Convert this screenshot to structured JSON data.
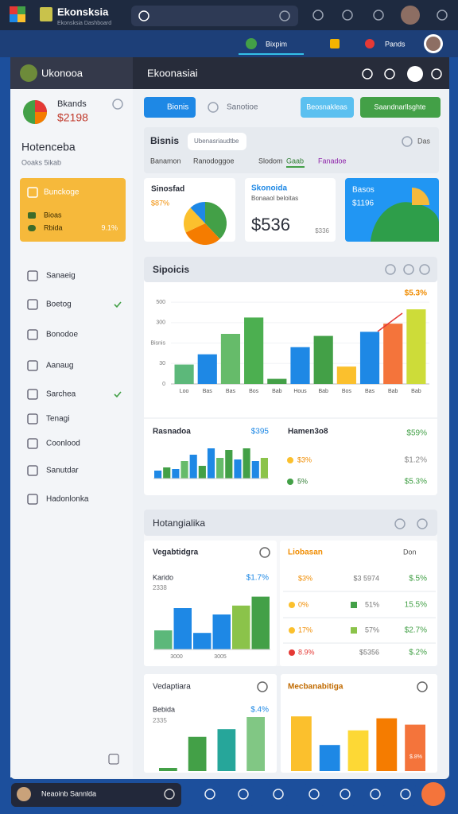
{
  "browser": {
    "title": "Ekonsksia",
    "subtitle": "Ekonsksia Dashboard",
    "tabs": [
      "Bixpim",
      "Pands"
    ]
  },
  "sidebar": {
    "app_name": "Ukonooa",
    "profile_name": "Bkands",
    "profile_value": "$2198",
    "section_title": "Hotenceba",
    "section_subtitle": "Ooaks 5ikab",
    "card": {
      "title": "Bunckoge",
      "rows": [
        {
          "label": "Bioas"
        },
        {
          "label": "Rbida",
          "value": "9.1%"
        }
      ]
    },
    "nav": [
      "Sanaeig",
      "Boetog",
      "Bonodoe",
      "Aanaug",
      "Sarchea",
      "Tenagi",
      "Coonlood",
      "Sanutdar",
      "Hadonlonka"
    ]
  },
  "header": {
    "title": "Ekoonasiai"
  },
  "toolbar": {
    "tab": "Bionis",
    "link": "Sanotioe",
    "buttons": [
      "Beosnakleas",
      "Saandnarllsghte"
    ]
  },
  "filter": {
    "title": "Bisnis",
    "search": "Ubenasriaudtbe",
    "tabs": [
      "Banamon",
      "Ranodoggoe",
      "Slodom",
      "Gaab",
      "Fanadoe"
    ],
    "action": "Das"
  },
  "kpis": [
    {
      "title": "Sinosfad",
      "value": "$87%",
      "pie": {
        "values": [
          38,
          30,
          20,
          12
        ],
        "colors": [
          "#43a047",
          "#f57c00",
          "#fbc02d",
          "#1e88e5"
        ]
      }
    },
    {
      "title": "Skonoida",
      "subtitle": "Bonaaol beloitas",
      "value": "$536",
      "note": "$336"
    },
    {
      "title": "Basos",
      "value": "$1196"
    }
  ],
  "overview": {
    "title": "Sipoicis",
    "chart": {
      "type": "bar",
      "categories": [
        "Loo",
        "Bas",
        "Bas",
        "Bos",
        "Bab",
        "Hous",
        "Bab",
        "Bos",
        "Bas",
        "Bab",
        "Bab"
      ],
      "values": [
        95,
        145,
        245,
        325,
        25,
        180,
        235,
        85,
        255,
        295,
        365
      ],
      "colors": [
        "#5cb87a",
        "#1e88e5",
        "#66bb6a",
        "#4caf50",
        "#43a047",
        "#1e88e5",
        "#43a047",
        "#fbc02d",
        "#1e88e5",
        "#f4743b",
        "#cddc39"
      ],
      "ylim": [
        0,
        420
      ],
      "yticks": [
        0,
        {
          "value": 100,
          "label": "30"
        },
        {
          "value": 200,
          "label": "Bisnis"
        },
        300,
        {
          "value": 400,
          "label": "500"
        }
      ],
      "annotation": "$5.3%"
    },
    "trend": {
      "title": "Rasnadoa",
      "value": "$395",
      "chart": {
        "type": "bar",
        "values": [
          10,
          14,
          12,
          22,
          30,
          16,
          38,
          26,
          36,
          24,
          38,
          22,
          26
        ],
        "colors": [
          "#1e88e5",
          "#43a047",
          "#1e88e5",
          "#66bb6a",
          "#1e88e5",
          "#43a047",
          "#1e88e5",
          "#66bb6a",
          "#43a047",
          "#1e88e5",
          "#43a047",
          "#1e88e5",
          "#8bc34a"
        ],
        "ylim": [
          0,
          50
        ]
      }
    },
    "summary": {
      "title": "Hamen3o8",
      "value": "$59%",
      "rows": [
        [
          "$3%",
          "$1.2%"
        ],
        [
          "5%",
          "$5.3%"
        ]
      ]
    }
  },
  "details": {
    "title": "Hotangialika",
    "left": {
      "title": "Vegabtidgra",
      "label": "Karido",
      "value": "$1.7%",
      "subtitle": "2338",
      "chart": {
        "type": "bar",
        "values": [
          30,
          65,
          26,
          55,
          69,
          83
        ],
        "colors": [
          "#5cb87a",
          "#1e88e5",
          "#1e88e5",
          "#1e88e5",
          "#8bc34a",
          "#43a047"
        ],
        "ylim": [
          0,
          100
        ]
      },
      "footer": [
        "3000",
        "3005"
      ]
    },
    "right": {
      "title": "Liobasan",
      "action": "Don",
      "rows": [
        [
          "$3%",
          "$3 5974",
          "$.5%"
        ],
        [
          "0%",
          "51%",
          "15.5%"
        ],
        [
          "17%",
          "57%",
          "$2.7%"
        ],
        [
          "8.9%",
          "$5356",
          "$.2%"
        ]
      ]
    }
  },
  "bottom": {
    "left": {
      "title": "Vedaptiara",
      "label": "Bebida",
      "value": "$.4%",
      "subtitle": "2335",
      "chart": {
        "type": "bar",
        "values": [
          5,
          54,
          66,
          85
        ],
        "colors": [
          "#43a047",
          "#43a047",
          "#26a69a",
          "#81c784"
        ],
        "ylim": [
          0,
          100
        ]
      }
    },
    "right": {
      "title": "Mecbanabitiga",
      "label": "$.8%",
      "chart": {
        "type": "bar",
        "values": [
          86,
          41,
          64,
          83,
          73
        ],
        "colors": [
          "#fbc02d",
          "#1e88e5",
          "#fdd835",
          "#f57c00",
          "#f4743b"
        ],
        "ylim": [
          0,
          100
        ]
      }
    }
  },
  "taskbar": {
    "user": "Neaoinb Sannlda"
  }
}
